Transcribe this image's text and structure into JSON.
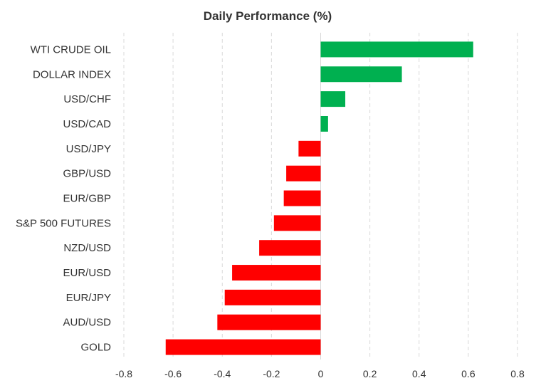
{
  "chart_data": {
    "type": "bar",
    "orientation": "horizontal",
    "title": "Daily Performance (%)",
    "categories": [
      "WTI CRUDE OIL",
      "DOLLAR INDEX",
      "USD/CHF",
      "USD/CAD",
      "USD/JPY",
      "GBP/USD",
      "EUR/GBP",
      "S&P 500 FUTURES",
      "NZD/USD",
      "EUR/USD",
      "EUR/JPY",
      "AUD/USD",
      "GOLD"
    ],
    "values": [
      0.62,
      0.33,
      0.1,
      0.03,
      -0.09,
      -0.14,
      -0.15,
      -0.19,
      -0.25,
      -0.36,
      -0.39,
      -0.42,
      -0.63
    ],
    "xlim": [
      -0.8,
      0.8
    ],
    "xticks": [
      -0.8,
      -0.6,
      -0.4,
      -0.2,
      0,
      0.2,
      0.4,
      0.6,
      0.8
    ],
    "xtick_labels": [
      "-0.8",
      "-0.6",
      "-0.4",
      "-0.2",
      "0",
      "0.2",
      "0.4",
      "0.6",
      "0.8"
    ],
    "xlabel": "",
    "ylabel": "",
    "grid": "vertical dashed",
    "legend": "none",
    "colors": {
      "positive": "#00b050",
      "negative": "#ff0000",
      "grid": "#d9d9d9",
      "text": "#333333"
    }
  }
}
